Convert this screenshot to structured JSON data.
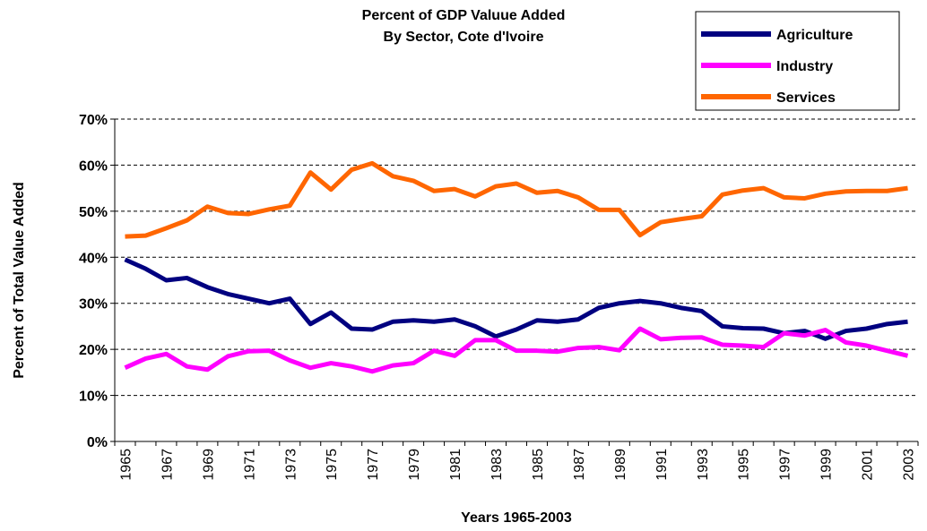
{
  "chart_data": {
    "type": "line",
    "title": "Percent of GDP Valuue Added",
    "subtitle": "By Sector, Cote d'Ivoire",
    "x_label": "Years 1965-2003",
    "y_label": "Percent of Total Value Added",
    "categories": [
      "1965",
      null,
      "1967",
      null,
      "1969",
      null,
      "1971",
      null,
      "1973",
      null,
      "1975",
      null,
      "1977",
      null,
      "1979",
      null,
      "1981",
      null,
      "1983",
      null,
      "1985",
      null,
      "1987",
      null,
      "1989",
      null,
      "1991",
      null,
      "1993",
      null,
      "1995",
      null,
      "1997",
      null,
      "1999",
      null,
      "2001",
      null,
      "2003"
    ],
    "series": [
      {
        "name": "Agriculture",
        "color": "#000080",
        "values": [
          39.5,
          37.5,
          35,
          35.5,
          33.5,
          32,
          31,
          30,
          31,
          25.5,
          28,
          24.5,
          24.3,
          26,
          26.3,
          26,
          26.5,
          25,
          22.8,
          24.3,
          26.3,
          26,
          26.5,
          29,
          30,
          30.5,
          30,
          29,
          28.3,
          25,
          24.6,
          24.5,
          23.5,
          24,
          22.3,
          24,
          24.5,
          25.5,
          26
        ]
      },
      {
        "name": "Industry",
        "color": "#ff00ff",
        "values": [
          16,
          18,
          19,
          16.3,
          15.6,
          18.5,
          19.6,
          19.7,
          17.6,
          16,
          17,
          16.3,
          15.2,
          16.5,
          17,
          19.7,
          18.6,
          22,
          22,
          19.7,
          19.7,
          19.5,
          20.3,
          20.5,
          19.8,
          24.5,
          22.2,
          22.5,
          22.6,
          21,
          20.8,
          20.5,
          23.5,
          23,
          24.2,
          21.5,
          20.8,
          19.7,
          18.6
        ]
      },
      {
        "name": "Services",
        "color": "#ff6600",
        "values": [
          44.5,
          44.7,
          46.3,
          48,
          51,
          49.6,
          49.4,
          50.4,
          51.2,
          58.4,
          54.7,
          59,
          60.4,
          57.6,
          56.6,
          54.4,
          54.8,
          53.2,
          55.4,
          56,
          54,
          54.4,
          53,
          50.3,
          50.3,
          44.8,
          47.6,
          48.3,
          48.9,
          53.6,
          54.5,
          55,
          53,
          52.8,
          53.8,
          54.3,
          54.4,
          54.4,
          55
        ]
      }
    ],
    "ylim": [
      0,
      70
    ],
    "yticks": [
      {
        "value": 0,
        "label": "0%"
      },
      {
        "value": 10,
        "label": "10%"
      },
      {
        "value": 20,
        "label": "20%"
      },
      {
        "value": 30,
        "label": "30%"
      },
      {
        "value": 40,
        "label": "40%"
      },
      {
        "value": 50,
        "label": "50%"
      },
      {
        "value": 60,
        "label": "60%"
      },
      {
        "value": 70,
        "label": "70%"
      }
    ],
    "grid": true,
    "legend": "top-right"
  }
}
